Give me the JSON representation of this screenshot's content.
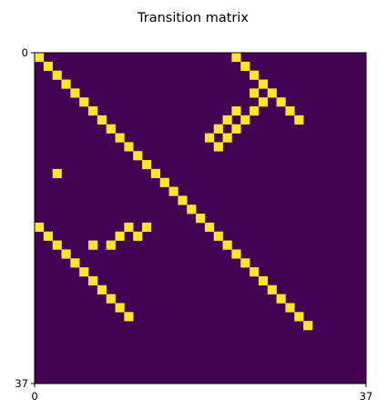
{
  "chart_data": {
    "type": "heatmap",
    "title": "Transition matrix",
    "n_rows": 37,
    "n_cols": 37,
    "x_ticks": [
      0,
      37
    ],
    "y_ticks": [
      0,
      37
    ],
    "xlim": [
      0,
      37
    ],
    "ylim": [
      37,
      0
    ],
    "colors": {
      "background": "#440154",
      "value": "#fde725",
      "frame": "#000000"
    },
    "cells": [
      [
        0,
        0
      ],
      [
        0,
        22
      ],
      [
        1,
        1
      ],
      [
        1,
        23
      ],
      [
        2,
        2
      ],
      [
        2,
        24
      ],
      [
        3,
        3
      ],
      [
        3,
        25
      ],
      [
        4,
        4
      ],
      [
        4,
        24
      ],
      [
        4,
        26
      ],
      [
        5,
        5
      ],
      [
        5,
        25
      ],
      [
        5,
        27
      ],
      [
        6,
        6
      ],
      [
        6,
        22
      ],
      [
        6,
        24
      ],
      [
        6,
        28
      ],
      [
        7,
        7
      ],
      [
        7,
        21
      ],
      [
        7,
        23
      ],
      [
        7,
        29
      ],
      [
        8,
        8
      ],
      [
        8,
        20
      ],
      [
        8,
        22
      ],
      [
        9,
        9
      ],
      [
        9,
        19
      ],
      [
        9,
        21
      ],
      [
        10,
        10
      ],
      [
        10,
        20
      ],
      [
        11,
        11
      ],
      [
        12,
        12
      ],
      [
        13,
        2
      ],
      [
        13,
        13
      ],
      [
        14,
        14
      ],
      [
        15,
        15
      ],
      [
        16,
        16
      ],
      [
        17,
        17
      ],
      [
        18,
        18
      ],
      [
        19,
        0
      ],
      [
        19,
        10
      ],
      [
        19,
        12
      ],
      [
        19,
        19
      ],
      [
        20,
        1
      ],
      [
        20,
        9
      ],
      [
        20,
        11
      ],
      [
        20,
        20
      ],
      [
        21,
        2
      ],
      [
        21,
        6
      ],
      [
        21,
        8
      ],
      [
        21,
        21
      ],
      [
        22,
        3
      ],
      [
        22,
        22
      ],
      [
        23,
        4
      ],
      [
        23,
        23
      ],
      [
        24,
        5
      ],
      [
        24,
        24
      ],
      [
        25,
        6
      ],
      [
        25,
        25
      ],
      [
        26,
        7
      ],
      [
        26,
        26
      ],
      [
        27,
        8
      ],
      [
        27,
        27
      ],
      [
        28,
        9
      ],
      [
        28,
        28
      ],
      [
        29,
        10
      ],
      [
        29,
        29
      ],
      [
        30,
        30
      ]
    ]
  }
}
